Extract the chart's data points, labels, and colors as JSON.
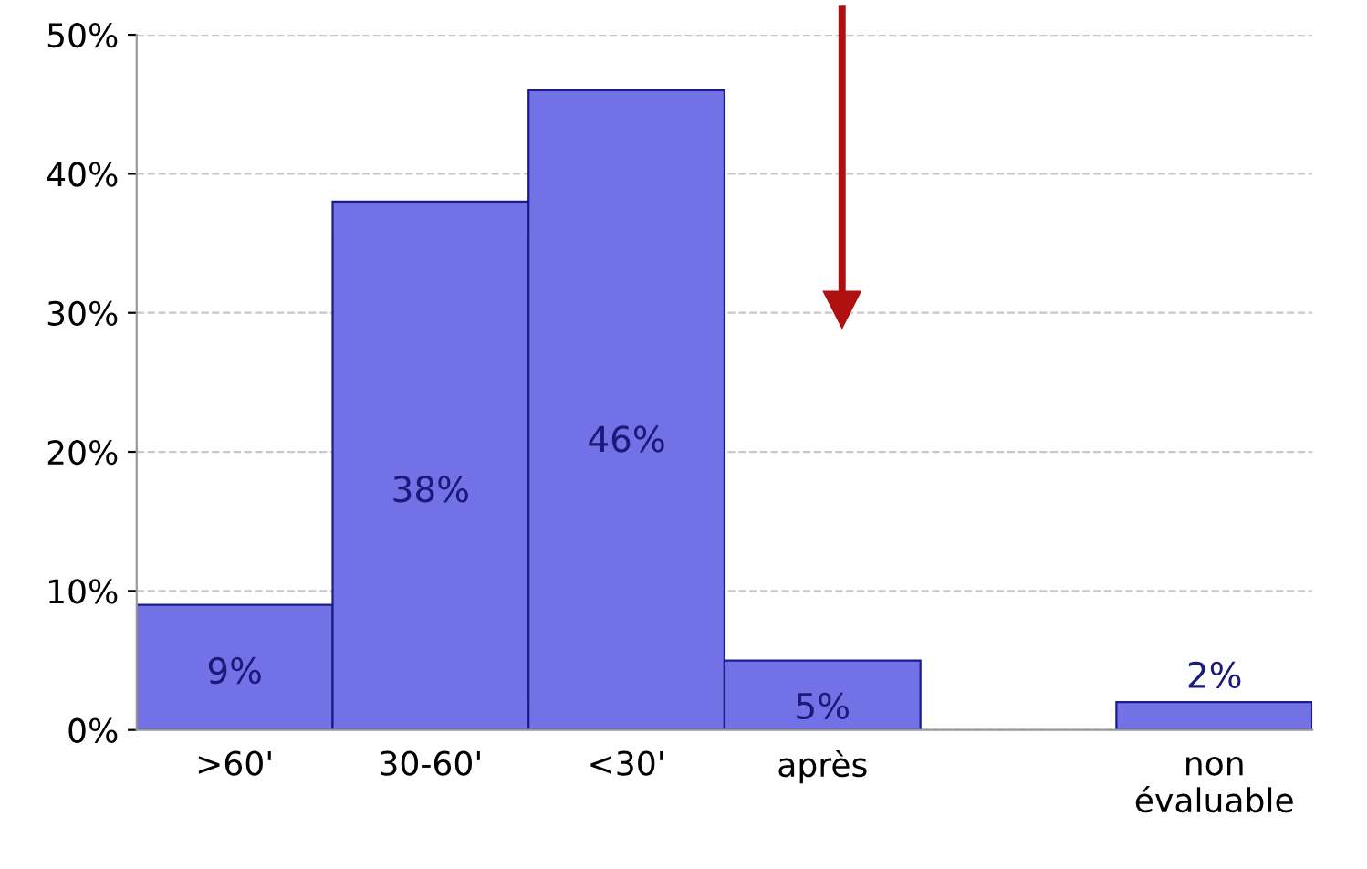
{
  "chart_data": {
    "type": "bar",
    "categories": [
      ">60'",
      "30-60'",
      "<30'",
      "après",
      null,
      "non\névaluable"
    ],
    "values": [
      9,
      38,
      46,
      5,
      null,
      2
    ],
    "color": "#7272e6",
    "ylim": [
      0,
      50
    ],
    "yticks": [
      {
        "value": 0,
        "label": "0%"
      },
      {
        "value": 10,
        "label": "10%"
      },
      {
        "value": 20,
        "label": "20%"
      },
      {
        "value": 30,
        "label": "30%"
      },
      {
        "value": 40,
        "label": "40%"
      },
      {
        "value": 50,
        "label": "50%"
      }
    ],
    "value_labels": [
      "9%",
      "38%",
      "46%",
      "5%",
      null,
      "2%"
    ],
    "grid": "y",
    "legend": false
  }
}
